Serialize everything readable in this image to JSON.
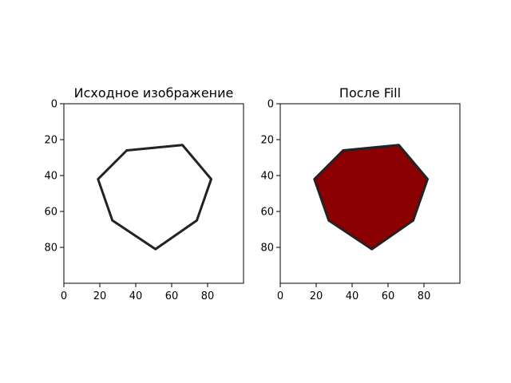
{
  "chart_data": [
    {
      "type": "image",
      "title": "Исходное изображение",
      "image_size": [
        100,
        100
      ],
      "xlim": [
        0,
        100
      ],
      "ylim": [
        100,
        0
      ],
      "x_ticks": [
        0,
        20,
        40,
        60,
        80
      ],
      "y_ticks": [
        0,
        20,
        40,
        60,
        80
      ],
      "x_tick_labels": [
        "0",
        "20",
        "40",
        "60",
        "80"
      ],
      "y_tick_labels": [
        "0",
        "20",
        "40",
        "60",
        "80"
      ],
      "polygon": [
        [
          35,
          26
        ],
        [
          66,
          23
        ],
        [
          82,
          42
        ],
        [
          74,
          65
        ],
        [
          51,
          81
        ],
        [
          27,
          65
        ],
        [
          19,
          42
        ]
      ],
      "filled": false,
      "outline_color": "#222222",
      "fill_color": "#ffffff"
    },
    {
      "type": "image",
      "title": "После Fill",
      "image_size": [
        100,
        100
      ],
      "xlim": [
        0,
        100
      ],
      "ylim": [
        100,
        0
      ],
      "x_ticks": [
        0,
        20,
        40,
        60,
        80
      ],
      "y_ticks": [
        0,
        20,
        40,
        60,
        80
      ],
      "x_tick_labels": [
        "0",
        "20",
        "40",
        "60",
        "80"
      ],
      "y_tick_labels": [
        "0",
        "20",
        "40",
        "60",
        "80"
      ],
      "polygon": [
        [
          35,
          26
        ],
        [
          66,
          23
        ],
        [
          82,
          42
        ],
        [
          74,
          65
        ],
        [
          51,
          81
        ],
        [
          27,
          65
        ],
        [
          19,
          42
        ]
      ],
      "filled": true,
      "outline_color": "#222222",
      "fill_color": "#8b0000"
    }
  ]
}
